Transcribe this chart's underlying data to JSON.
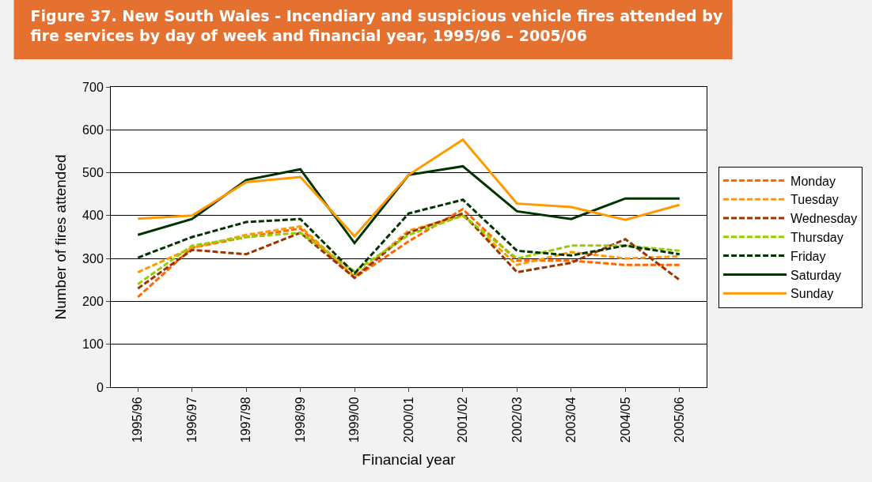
{
  "chart_data": {
    "type": "line",
    "title": "Figure 37. New South Wales - Incendiary and suspicious vehicle fires attended by fire services by day of week and financial year, 1995/96 – 2005/06",
    "xlabel": "Financial year",
    "ylabel": "Number of fires attended",
    "categories": [
      "1995/96",
      "1996/97",
      "1997/98",
      "1998/99",
      "1999/00",
      "2000/01",
      "2001/02",
      "2002/03",
      "2003/04",
      "2004/05",
      "2005/06"
    ],
    "series": [
      {
        "name": "Monday",
        "color": "#ff6600",
        "line_style": "dashed",
        "values": [
          210,
          325,
          350,
          370,
          255,
          340,
          415,
          295,
          295,
          285,
          285
        ]
      },
      {
        "name": "Tuesday",
        "color": "#ff9900",
        "line_style": "dashed",
        "values": [
          268,
          325,
          355,
          375,
          258,
          365,
          400,
          285,
          315,
          300,
          305
        ]
      },
      {
        "name": "Wednesday",
        "color": "#993300",
        "line_style": "dashed",
        "values": [
          230,
          320,
          310,
          360,
          255,
          360,
          405,
          268,
          290,
          345,
          250
        ]
      },
      {
        "name": "Thursday",
        "color": "#99cc00",
        "line_style": "dashed",
        "values": [
          240,
          330,
          350,
          360,
          270,
          355,
          400,
          300,
          330,
          330,
          318
        ]
      },
      {
        "name": "Friday",
        "color": "#003300",
        "line_style": "dashed",
        "values": [
          302,
          350,
          385,
          392,
          265,
          405,
          437,
          318,
          307,
          330,
          310
        ]
      },
      {
        "name": "Saturday",
        "color": "#003300",
        "line_style": "solid",
        "values": [
          355,
          392,
          483,
          508,
          336,
          495,
          515,
          410,
          392,
          440,
          440
        ]
      },
      {
        "name": "Sunday",
        "color": "#ff9900",
        "line_style": "solid",
        "values": [
          393,
          400,
          478,
          490,
          352,
          495,
          577,
          428,
          420,
          390,
          425
        ]
      }
    ],
    "ylim": [
      0,
      700
    ],
    "yticks": [
      0,
      100,
      200,
      300,
      400,
      500,
      600,
      700
    ],
    "grid": "y",
    "legend": "right",
    "marker": "none"
  }
}
